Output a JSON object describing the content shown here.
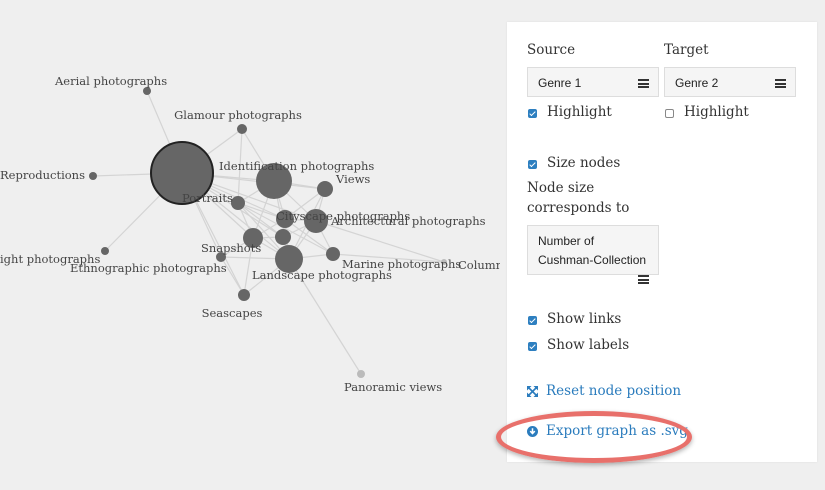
{
  "graph": {
    "nodes": [
      {
        "id": "aerial",
        "label": "Aerial photographs"
      },
      {
        "id": "glamour",
        "label": "Glamour photographs"
      },
      {
        "id": "reproductions",
        "label": "Reproductions"
      },
      {
        "id": "identification",
        "label": "Identification photographs"
      },
      {
        "id": "views",
        "label": "Views"
      },
      {
        "id": "portraits",
        "label": "Portraits"
      },
      {
        "id": "cityscape",
        "label": "Cityscape photographs"
      },
      {
        "id": "architectural",
        "label": "Architectural photographs"
      },
      {
        "id": "snapshots",
        "label": "Snapshots"
      },
      {
        "id": "night",
        "label": "ight photographs"
      },
      {
        "id": "ethnographic",
        "label": "Ethnographic photographs"
      },
      {
        "id": "marine",
        "label": "Marine photographs"
      },
      {
        "id": "columned",
        "label": "Columne"
      },
      {
        "id": "landscape",
        "label": "Landscape photographs"
      },
      {
        "id": "seascapes",
        "label": "Seascapes"
      },
      {
        "id": "panoramic",
        "label": "Panoramic views"
      },
      {
        "id": "hub",
        "label": ""
      },
      {
        "id": "center",
        "label": ""
      }
    ],
    "links": [
      [
        "aerial",
        "hub"
      ],
      [
        "glamour",
        "hub"
      ],
      [
        "reproductions",
        "hub"
      ],
      [
        "night",
        "hub"
      ],
      [
        "hub",
        "identification"
      ],
      [
        "hub",
        "views"
      ],
      [
        "hub",
        "portraits"
      ],
      [
        "hub",
        "cityscape"
      ],
      [
        "hub",
        "architectural"
      ],
      [
        "hub",
        "snapshots"
      ],
      [
        "hub",
        "landscape"
      ],
      [
        "hub",
        "marine"
      ],
      [
        "hub",
        "ethnographic"
      ],
      [
        "hub",
        "seascapes"
      ],
      [
        "hub",
        "center"
      ],
      [
        "glamour",
        "identification"
      ],
      [
        "glamour",
        "portraits"
      ],
      [
        "identification",
        "views"
      ],
      [
        "identification",
        "portraits"
      ],
      [
        "identification",
        "cityscape"
      ],
      [
        "identification",
        "architectural"
      ],
      [
        "identification",
        "landscape"
      ],
      [
        "identification",
        "snapshots"
      ],
      [
        "views",
        "cityscape"
      ],
      [
        "views",
        "architectural"
      ],
      [
        "views",
        "landscape"
      ],
      [
        "portraits",
        "snapshots"
      ],
      [
        "portraits",
        "cityscape"
      ],
      [
        "portraits",
        "landscape"
      ],
      [
        "portraits",
        "center"
      ],
      [
        "cityscape",
        "architectural"
      ],
      [
        "cityscape",
        "landscape"
      ],
      [
        "cityscape",
        "snapshots"
      ],
      [
        "cityscape",
        "marine"
      ],
      [
        "cityscape",
        "center"
      ],
      [
        "architectural",
        "landscape"
      ],
      [
        "architectural",
        "marine"
      ],
      [
        "architectural",
        "columned"
      ],
      [
        "snapshots",
        "landscape"
      ],
      [
        "snapshots",
        "ethnographic"
      ],
      [
        "snapshots",
        "seascapes"
      ],
      [
        "snapshots",
        "center"
      ],
      [
        "landscape",
        "marine"
      ],
      [
        "landscape",
        "seascapes"
      ],
      [
        "landscape",
        "panoramic"
      ],
      [
        "landscape",
        "center"
      ],
      [
        "ethnographic",
        "landscape"
      ],
      [
        "marine",
        "columned"
      ],
      [
        "center",
        "architectural"
      ],
      [
        "seascapes",
        "ethnographic"
      ]
    ]
  },
  "panel": {
    "source_label": "Source",
    "target_label": "Target",
    "source_value": "Genre 1",
    "target_value": "Genre 2",
    "source_highlight": {
      "label": "Highlight",
      "checked": true
    },
    "target_highlight": {
      "label": "Highlight",
      "checked": false
    },
    "size_nodes": {
      "label": "Size nodes",
      "checked": true
    },
    "node_size_label_line1": "Node size",
    "node_size_label_line2": "corresponds to",
    "node_size_value_line1": "Number of",
    "node_size_value_line2": "Cushman-Collection",
    "show_links": {
      "label": "Show links",
      "checked": true
    },
    "show_labels": {
      "label": "Show labels",
      "checked": true
    },
    "reset_label": "Reset node position",
    "export_label": "Export graph as .svg"
  },
  "colors": {
    "node": "#666666",
    "node_faded": "#bbbbbb",
    "link": "#d4d4d4",
    "accent": "#2b7cbd",
    "highlight_ring": "#e8706b"
  }
}
